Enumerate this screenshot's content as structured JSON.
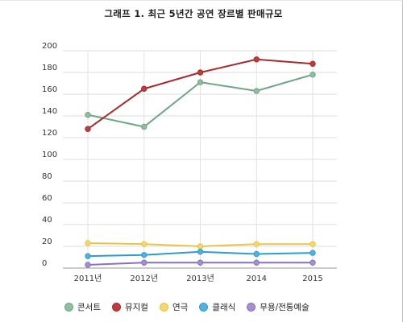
{
  "chart_data": {
    "type": "line",
    "title": "그래프 1. 최근 5년간 공연 장르별 판매규모",
    "categories": [
      "2011년",
      "2012년",
      "2013년",
      "2014",
      "2015"
    ],
    "ylim": [
      0,
      200
    ],
    "yticks": [
      0,
      20,
      40,
      60,
      80,
      100,
      120,
      140,
      160,
      180,
      200
    ],
    "grid": {
      "horizontal": true,
      "vertical": true
    },
    "legend_position": "bottom",
    "series": [
      {
        "name": "콘서트",
        "color": "#8fbf9f",
        "stroke": "#6fa587",
        "values": [
          141,
          130,
          171,
          163,
          178
        ]
      },
      {
        "name": "뮤지컬",
        "color": "#c23b3b",
        "stroke": "#a52a2a",
        "values": [
          128,
          165,
          180,
          192,
          188
        ]
      },
      {
        "name": "연극",
        "color": "#f5d76e",
        "stroke": "#e8c44a",
        "values": [
          23,
          22,
          20,
          22,
          22
        ]
      },
      {
        "name": "클래식",
        "color": "#4fb3e0",
        "stroke": "#2e9ccf",
        "values": [
          11,
          12,
          15,
          13,
          14
        ]
      },
      {
        "name": "무용/전통예술",
        "color": "#a58fcf",
        "stroke": "#8a72bb",
        "values": [
          3,
          5,
          5,
          5,
          5
        ]
      }
    ]
  }
}
